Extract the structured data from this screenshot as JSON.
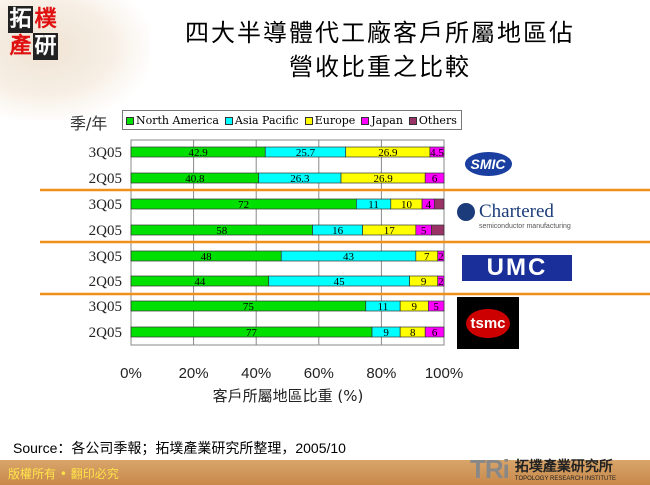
{
  "logo_text": [
    "拓",
    "樸",
    "產",
    "研"
  ],
  "title_line1": "四大半導體代工廠客戶所屬地區佔",
  "title_line2": "營收比重之比較",
  "source": "Source：各公司季報；拓墣產業研究所整理，2005/10",
  "footer_copyright": "版權所有 • 翻印必究",
  "footer_logo": {
    "mark": "TRi",
    "name": "拓墣產業研究所",
    "sub": "TOPOLOGY RESEARCH INSTITUTE"
  },
  "company_logos": [
    {
      "name": "SMIC"
    },
    {
      "name": "Chartered",
      "sub": "semiconductor manufacturing"
    },
    {
      "name": "UMC"
    },
    {
      "name": "tsmc"
    }
  ],
  "chart_data": {
    "type": "bar",
    "orientation": "horizontal",
    "stacked": "percent",
    "ylabel": "季/年",
    "xlabel": "客戶所屬地區比重 (%)",
    "xlim": [
      0,
      100
    ],
    "xticks": [
      "0%",
      "20%",
      "40%",
      "60%",
      "80%",
      "100%"
    ],
    "grid": true,
    "legend_position": "top",
    "categories": [
      "3Q05",
      "2Q05",
      "3Q05",
      "2Q05",
      "3Q05",
      "2Q05",
      "3Q05",
      "2Q05"
    ],
    "groups": [
      "SMIC",
      "Chartered",
      "UMC",
      "TSMC"
    ],
    "series": [
      {
        "name": "North America",
        "color": "#00e000",
        "values": [
          42.9,
          40.8,
          72,
          58,
          48,
          44,
          75,
          77
        ],
        "labels": [
          "42.9",
          "40.8",
          "72",
          "58",
          "48",
          "44",
          "75",
          "77"
        ]
      },
      {
        "name": "Asia Pacific",
        "color": "#00ffff",
        "values": [
          25.7,
          26.3,
          11,
          16,
          43,
          45,
          11,
          9
        ],
        "labels": [
          "25.7",
          "26.3",
          "11",
          "16",
          "43",
          "45",
          "11",
          "9"
        ]
      },
      {
        "name": "Europe",
        "color": "#ffff00",
        "values": [
          26.9,
          26.9,
          10,
          17,
          7,
          9,
          9,
          8
        ],
        "labels": [
          "26.9",
          "26.9",
          "10",
          "17",
          "7",
          "9",
          "9",
          "8"
        ]
      },
      {
        "name": "Japan",
        "color": "#ff00ff",
        "values": [
          4.5,
          6,
          4,
          5,
          2,
          2,
          5,
          6
        ],
        "labels": [
          "4.5",
          "6",
          "4",
          "5",
          "2",
          "2",
          "5",
          "6"
        ]
      },
      {
        "name": "Others",
        "color": "#993366",
        "values": [
          0,
          0,
          3,
          4,
          0,
          0,
          0,
          0
        ],
        "labels": [
          "",
          "",
          "",
          "",
          "",
          "",
          "",
          ""
        ]
      }
    ]
  }
}
